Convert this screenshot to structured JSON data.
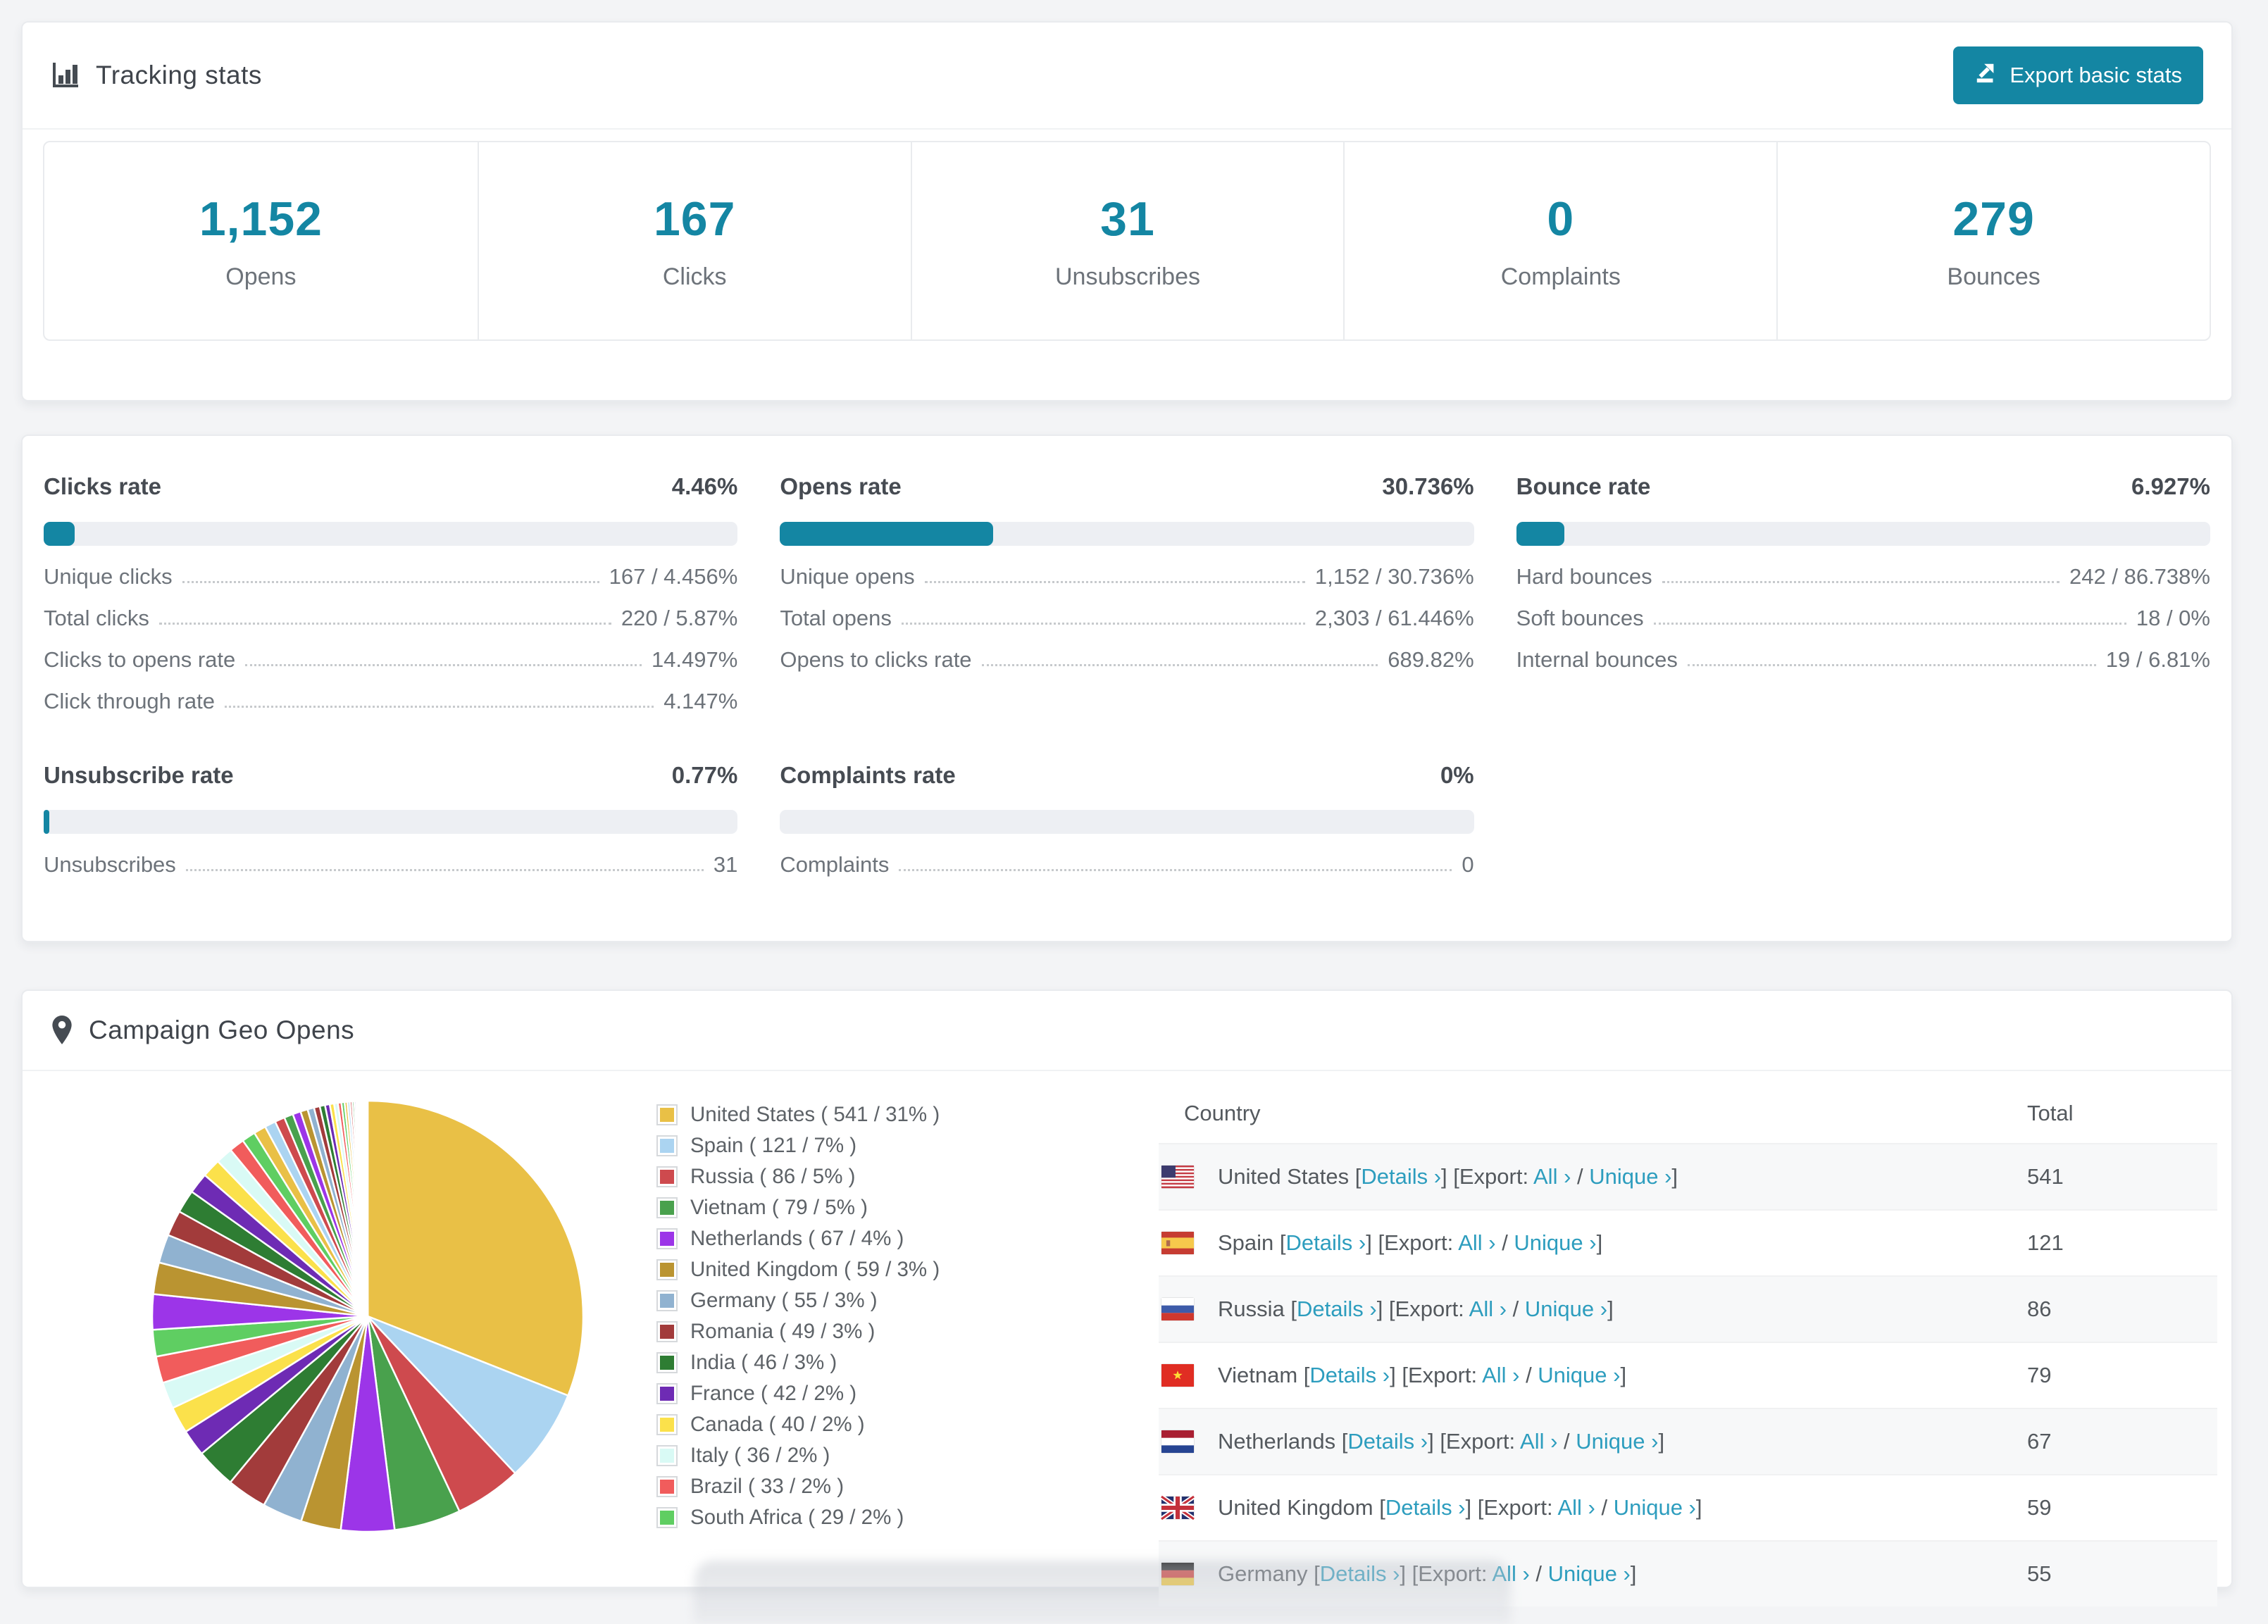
{
  "app": {
    "background": "#f3f4f6",
    "accent": "#1486A3",
    "link_color": "#2D9DBE"
  },
  "tracking": {
    "title": "Tracking stats",
    "export_button": {
      "label": "Export basic stats"
    },
    "summary": [
      {
        "value": "1,152",
        "label": "Opens"
      },
      {
        "value": "167",
        "label": "Clicks"
      },
      {
        "value": "31",
        "label": "Unsubscribes"
      },
      {
        "value": "0",
        "label": "Complaints"
      },
      {
        "value": "279",
        "label": "Bounces"
      }
    ]
  },
  "rates": {
    "sections": [
      {
        "title": "Clicks rate",
        "value": "4.46%",
        "pct": 4.46,
        "rows": [
          {
            "label": "Unique clicks",
            "value": "167 / 4.456%"
          },
          {
            "label": "Total clicks",
            "value": "220 / 5.87%"
          },
          {
            "label": "Clicks to opens rate",
            "value": "14.497%"
          },
          {
            "label": "Click through rate",
            "value": "4.147%"
          }
        ]
      },
      {
        "title": "Opens rate",
        "value": "30.736%",
        "pct": 30.736,
        "rows": [
          {
            "label": "Unique opens",
            "value": "1,152 / 30.736%"
          },
          {
            "label": "Total opens",
            "value": "2,303 / 61.446%"
          },
          {
            "label": "Opens to clicks rate",
            "value": "689.82%"
          }
        ]
      },
      {
        "title": "Bounce rate",
        "value": "6.927%",
        "pct": 6.927,
        "rows": [
          {
            "label": "Hard bounces",
            "value": "242 / 86.738%"
          },
          {
            "label": "Soft bounces",
            "value": "18 / 0%"
          },
          {
            "label": "Internal bounces",
            "value": "19 / 6.81%"
          }
        ]
      },
      {
        "title": "Unsubscribe rate",
        "value": "0.77%",
        "pct": 0.77,
        "rows": [
          {
            "label": "Unsubscribes",
            "value": "31"
          }
        ]
      },
      {
        "title": "Complaints rate",
        "value": "0%",
        "pct": 0,
        "rows": [
          {
            "label": "Complaints",
            "value": "0"
          }
        ]
      }
    ]
  },
  "geo": {
    "title": "Campaign Geo Opens",
    "chart_data": {
      "type": "pie",
      "title": "Campaign Geo Opens",
      "labels": [
        "United States",
        "Spain",
        "Russia",
        "Vietnam",
        "Netherlands",
        "United Kingdom",
        "Germany",
        "Romania",
        "India",
        "France",
        "Canada",
        "Italy",
        "Brazil",
        "South Africa"
      ],
      "values": [
        541,
        121,
        86,
        79,
        67,
        59,
        55,
        49,
        46,
        42,
        40,
        36,
        33,
        29
      ],
      "pcts": [
        31,
        7,
        5,
        5,
        4,
        3,
        3,
        3,
        3,
        2,
        2,
        2,
        2,
        2
      ],
      "colors": [
        "#E9C046",
        "#ABD4F1",
        "#CE4A4E",
        "#49A14D",
        "#9C35E8",
        "#BA9431",
        "#90B2D0",
        "#A23B3B",
        "#2E7D33",
        "#6E2BB4",
        "#FBE14B",
        "#D9FAF5",
        "#F15C5C",
        "#5FCE62"
      ],
      "start_angle_deg": 0,
      "direction": "clockwise",
      "legend_position": "right",
      "unlabeled_tail": {
        "total_pct": 26,
        "approx_slice_count": 40,
        "decay": 0.9
      }
    },
    "legend": [
      {
        "text": "United States ( 541 / 31% )",
        "color": "#E9C046"
      },
      {
        "text": "Spain ( 121 / 7% )",
        "color": "#ABD4F1"
      },
      {
        "text": "Russia ( 86 / 5% )",
        "color": "#CE4A4E"
      },
      {
        "text": "Vietnam ( 79 / 5% )",
        "color": "#49A14D"
      },
      {
        "text": "Netherlands ( 67 / 4% )",
        "color": "#9C35E8"
      },
      {
        "text": "United Kingdom ( 59 / 3% )",
        "color": "#BA9431"
      },
      {
        "text": "Germany ( 55 / 3% )",
        "color": "#90B2D0"
      },
      {
        "text": "Romania ( 49 / 3% )",
        "color": "#A23B3B"
      },
      {
        "text": "India ( 46 / 3% )",
        "color": "#2E7D33"
      },
      {
        "text": "France ( 42 / 2% )",
        "color": "#6E2BB4"
      },
      {
        "text": "Canada ( 40 / 2% )",
        "color": "#FBE14B"
      },
      {
        "text": "Italy ( 36 / 2% )",
        "color": "#D9FAF5"
      },
      {
        "text": "Brazil ( 33 / 2% )",
        "color": "#F15C5C"
      },
      {
        "text": "South Africa ( 29 / 2% )",
        "color": "#5FCE62"
      }
    ],
    "table": {
      "headers": [
        "Country",
        "Total"
      ],
      "links": {
        "open": "[",
        "close": "]",
        "details": "Details",
        "export": "Export:",
        "all": "All",
        "sep": "/",
        "unique": "Unique",
        "chevron": "›"
      },
      "rows": [
        {
          "country": "United States",
          "flag": "us",
          "total": "541"
        },
        {
          "country": "Spain",
          "flag": "es",
          "total": "121"
        },
        {
          "country": "Russia",
          "flag": "ru",
          "total": "86"
        },
        {
          "country": "Vietnam",
          "flag": "vn",
          "total": "79"
        },
        {
          "country": "Netherlands",
          "flag": "nl",
          "total": "67"
        },
        {
          "country": "United Kingdom",
          "flag": "gb",
          "total": "59"
        },
        {
          "country": "Germany",
          "flag": "de",
          "total": "55"
        }
      ]
    }
  }
}
